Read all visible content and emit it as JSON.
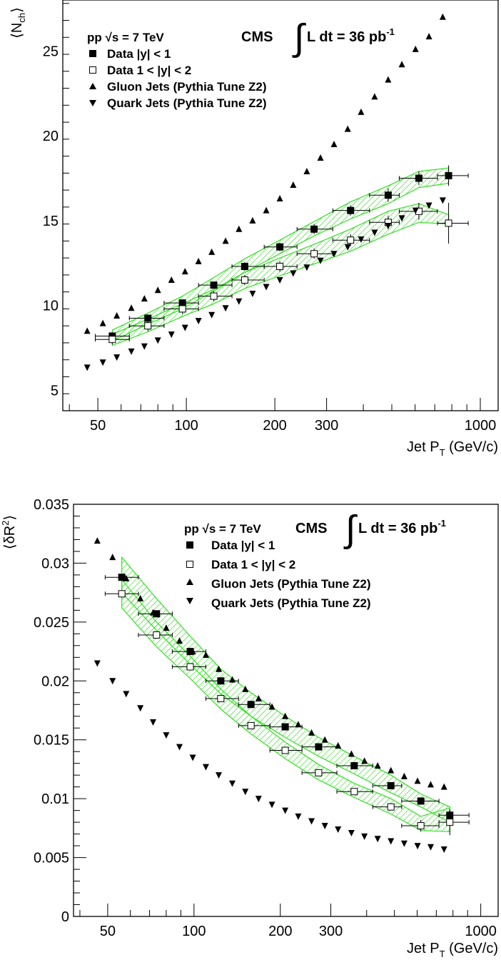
{
  "colors": {
    "band": "#33dd22",
    "axis": "#000000",
    "marker": "#000000"
  },
  "chart_data": [
    {
      "type": "scatter",
      "x_scale": "log",
      "xlim": [
        38,
        1150
      ],
      "ylim": [
        3.8,
        28
      ],
      "x_ticks": [
        50,
        100,
        200,
        300,
        1000
      ],
      "y_ticks": [
        5,
        10,
        15,
        20,
        25
      ],
      "xlabel_main": "Jet P",
      "xlabel_sub": "T",
      "xlabel_tail": " (GeV/c)",
      "ylabel_main": "⟨N",
      "ylabel_sub": "ch",
      "ylabel_tail": "⟩",
      "legend_position": "top-left",
      "legend_header": "pp √s = 7 TeV",
      "cms_label": "CMS",
      "lumi_text": "L dt = 36 pb",
      "lumi_sup": "-1",
      "series": [
        {
          "name": "Data |y| < 1",
          "marker": "filled-square",
          "x": [
            56,
            74,
            97,
            124,
            158,
            208,
            272,
            362,
            486,
            618,
            780
          ],
          "y": [
            8.2,
            9.25,
            10.15,
            11.2,
            12.3,
            13.45,
            14.5,
            15.6,
            16.5,
            17.5,
            17.65
          ],
          "xerr": [
            [
              49,
              64
            ],
            [
              64,
              84
            ],
            [
              84,
              110
            ],
            [
              110,
              143
            ],
            [
              143,
              184
            ],
            [
              184,
              238
            ],
            [
              238,
              315
            ],
            [
              315,
              420
            ],
            [
              420,
              530
            ],
            [
              530,
              715
            ],
            [
              715,
              910
            ]
          ],
          "yerr": [
            0.2,
            0.2,
            0.2,
            0.2,
            0.25,
            0.25,
            0.3,
            0.3,
            0.4,
            0.4,
            0.6
          ]
        },
        {
          "name": "Data 1 < |y| < 2",
          "marker": "open-square",
          "x": [
            56,
            74,
            97,
            124,
            158,
            208,
            272,
            362,
            486,
            618,
            780
          ],
          "y": [
            8.0,
            8.8,
            9.8,
            10.55,
            11.5,
            12.3,
            13.05,
            13.85,
            14.9,
            15.55,
            14.85
          ],
          "xerr": [
            [
              49,
              64
            ],
            [
              64,
              84
            ],
            [
              84,
              110
            ],
            [
              110,
              143
            ],
            [
              143,
              184
            ],
            [
              184,
              238
            ],
            [
              238,
              315
            ],
            [
              315,
              420
            ],
            [
              420,
              530
            ],
            [
              530,
              715
            ],
            [
              715,
              910
            ]
          ],
          "yerr": [
            0.3,
            0.3,
            0.3,
            0.3,
            0.3,
            0.3,
            0.3,
            0.35,
            0.4,
            0.5,
            1.2
          ]
        },
        {
          "name": "Gluon Jets (Pythia Tune Z2)",
          "marker": "triangle-up",
          "x": [
            46,
            52,
            58,
            65,
            72,
            80,
            89,
            99,
            110,
            122,
            136,
            151,
            168,
            187,
            208,
            231,
            257,
            286,
            318,
            354,
            393,
            437,
            486,
            541,
            602,
            669,
            745
          ],
          "y": [
            8.5,
            8.95,
            9.4,
            9.85,
            10.4,
            10.9,
            11.5,
            12.0,
            12.6,
            13.15,
            13.8,
            14.5,
            15.0,
            15.6,
            16.3,
            17.1,
            17.9,
            18.7,
            19.5,
            20.4,
            21.4,
            22.3,
            23.3,
            24.2,
            25.1,
            25.85,
            27.0
          ]
        },
        {
          "name": "Quark Jets (Pythia Tune Z2)",
          "marker": "triangle-down",
          "x": [
            46,
            52,
            58,
            65,
            72,
            80,
            89,
            99,
            110,
            122,
            136,
            151,
            168,
            187,
            208,
            231,
            257,
            286,
            318,
            354,
            393,
            437,
            486,
            541,
            602,
            669,
            745
          ],
          "y": [
            6.35,
            6.65,
            6.95,
            7.3,
            7.6,
            7.95,
            8.3,
            8.7,
            9.1,
            9.45,
            9.85,
            10.25,
            10.7,
            11.1,
            11.5,
            11.9,
            12.25,
            12.65,
            13.05,
            13.45,
            13.9,
            14.3,
            14.7,
            15.15,
            15.6,
            15.9,
            16.2
          ]
        }
      ],
      "bands": [
        {
          "x": [
            56,
            74,
            97,
            124,
            158,
            208,
            272,
            362,
            486,
            618,
            780
          ],
          "lo": [
            7.9,
            8.9,
            9.8,
            10.85,
            11.95,
            13.05,
            14.1,
            15.1,
            16.0,
            16.95,
            17.2
          ],
          "hi": [
            8.55,
            9.55,
            10.55,
            11.65,
            12.75,
            13.85,
            14.95,
            16.1,
            17.05,
            17.9,
            18.1
          ]
        },
        {
          "x": [
            56,
            74,
            97,
            124,
            158,
            208,
            272,
            362,
            486,
            618,
            780
          ],
          "lo": [
            7.65,
            8.45,
            9.35,
            10.1,
            11.0,
            11.75,
            12.45,
            13.2,
            14.2,
            14.9,
            14.8
          ],
          "hi": [
            8.3,
            9.2,
            10.1,
            10.95,
            11.95,
            12.8,
            13.6,
            14.5,
            15.55,
            16.0,
            15.35
          ]
        }
      ]
    },
    {
      "type": "scatter",
      "x_scale": "log",
      "xlim": [
        38,
        1150
      ],
      "ylim": [
        0,
        0.035
      ],
      "x_ticks": [
        50,
        100,
        200,
        300,
        1000
      ],
      "y_ticks": [
        0,
        0.005,
        0.01,
        0.015,
        0.02,
        0.025,
        0.03,
        0.035
      ],
      "y_tick_labels": [
        "0",
        "0.005",
        "0.01",
        "0.015",
        "0.02",
        "0.025",
        "0.03",
        "0.035"
      ],
      "xlabel_main": "Jet P",
      "xlabel_sub": "T",
      "xlabel_tail": " (GeV/c)",
      "ylabel_main": "⟨δR",
      "ylabel_sup": "2",
      "ylabel_tail": "⟩",
      "legend_position": "top-right",
      "legend_header": "pp √s = 7 TeV",
      "cms_label": "CMS",
      "lumi_text": "L dt = 36 pb",
      "lumi_sup": "-1",
      "series": [
        {
          "name": "Data  |y| < 1",
          "marker": "filled-square",
          "x": [
            56,
            74,
            97,
            124,
            158,
            208,
            272,
            362,
            486,
            618,
            780
          ],
          "y": [
            0.0288,
            0.0257,
            0.0225,
            0.02,
            0.018,
            0.0161,
            0.0144,
            0.0128,
            0.0111,
            0.0098,
            0.0086
          ],
          "xerr": [
            [
              49,
              64
            ],
            [
              64,
              84
            ],
            [
              84,
              110
            ],
            [
              110,
              143
            ],
            [
              143,
              184
            ],
            [
              184,
              238
            ],
            [
              238,
              315
            ],
            [
              315,
              420
            ],
            [
              420,
              530
            ],
            [
              530,
              715
            ],
            [
              715,
              910
            ]
          ],
          "yerr": [
            0.0003,
            0.0003,
            0.0003,
            0.0003,
            0.0003,
            0.0003,
            0.0003,
            0.0003,
            0.0003,
            0.0003,
            0.0004
          ]
        },
        {
          "name": "Data 1 < |y| < 2",
          "marker": "open-square",
          "x": [
            56,
            74,
            97,
            124,
            158,
            208,
            272,
            362,
            486,
            618,
            780
          ],
          "y": [
            0.0274,
            0.0239,
            0.0212,
            0.0185,
            0.0162,
            0.0141,
            0.0122,
            0.0106,
            0.0093,
            0.0077,
            0.008
          ],
          "xerr": [
            [
              49,
              64
            ],
            [
              64,
              84
            ],
            [
              84,
              110
            ],
            [
              110,
              143
            ],
            [
              143,
              184
            ],
            [
              184,
              238
            ],
            [
              238,
              315
            ],
            [
              315,
              420
            ],
            [
              420,
              530
            ],
            [
              530,
              715
            ],
            [
              715,
              910
            ]
          ],
          "yerr": [
            0.0003,
            0.0003,
            0.0003,
            0.0003,
            0.0003,
            0.0003,
            0.0003,
            0.0003,
            0.0003,
            0.0005,
            0.0011
          ]
        },
        {
          "name": "Gluon Jets (Pythia Tune Z2)",
          "marker": "triangle-up",
          "x": [
            46,
            52,
            58,
            65,
            72,
            80,
            89,
            99,
            110,
            122,
            136,
            151,
            168,
            187,
            208,
            231,
            257,
            286,
            318,
            354,
            393,
            437,
            486,
            541,
            602,
            669,
            745
          ],
          "y": [
            0.0319,
            0.0305,
            0.0287,
            0.027,
            0.0258,
            0.0245,
            0.0234,
            0.0225,
            0.0222,
            0.021,
            0.0201,
            0.0193,
            0.0185,
            0.0178,
            0.017,
            0.0163,
            0.0156,
            0.015,
            0.0145,
            0.0138,
            0.0132,
            0.0128,
            0.0124,
            0.0119,
            0.0115,
            0.0112,
            0.011
          ]
        },
        {
          "name": "Quark Jets (Pythia Tune Z2)",
          "marker": "triangle-down",
          "x": [
            46,
            52,
            58,
            65,
            72,
            80,
            89,
            99,
            110,
            122,
            136,
            151,
            168,
            187,
            208,
            231,
            257,
            286,
            318,
            354,
            393,
            437,
            486,
            541,
            602,
            669,
            745
          ],
          "y": [
            0.0215,
            0.02,
            0.0189,
            0.0177,
            0.0165,
            0.0154,
            0.0144,
            0.0135,
            0.0127,
            0.012,
            0.0113,
            0.0106,
            0.01,
            0.0095,
            0.009,
            0.0085,
            0.0081,
            0.0077,
            0.0074,
            0.0071,
            0.0068,
            0.0066,
            0.0064,
            0.0062,
            0.006,
            0.0059,
            0.0057
          ]
        }
      ],
      "bands": [
        {
          "x": [
            56,
            74,
            97,
            124,
            158,
            208,
            272,
            362,
            486,
            618,
            780
          ],
          "lo": [
            0.0275,
            0.0243,
            0.0214,
            0.0189,
            0.017,
            0.0152,
            0.0136,
            0.0121,
            0.0105,
            0.0093,
            0.008
          ],
          "hi": [
            0.0305,
            0.027,
            0.0238,
            0.021,
            0.019,
            0.017,
            0.0152,
            0.0136,
            0.012,
            0.0104,
            0.0093
          ]
        },
        {
          "x": [
            56,
            74,
            97,
            124,
            158,
            208,
            272,
            362,
            486,
            618,
            780
          ],
          "lo": [
            0.0262,
            0.0229,
            0.0202,
            0.0176,
            0.0155,
            0.0134,
            0.0116,
            0.0101,
            0.0087,
            0.0073,
            0.0072
          ],
          "hi": [
            0.0286,
            0.025,
            0.0221,
            0.0193,
            0.017,
            0.0148,
            0.0129,
            0.0113,
            0.01,
            0.0085,
            0.0092
          ]
        }
      ]
    }
  ]
}
